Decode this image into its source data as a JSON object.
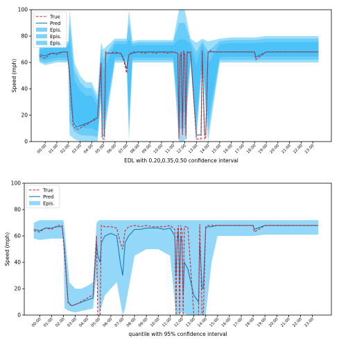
{
  "chart_data": [
    {
      "type": "line",
      "xlabel": "EDL with 0.20,0.35,0.50 confidence interval",
      "ylabel": "Speed (mph)",
      "ylim": [
        0,
        100
      ],
      "yticks": [
        0,
        20,
        40,
        60,
        80,
        100
      ],
      "xticks": [
        "00:00",
        "01:00",
        "02:00",
        "03:00",
        "04:00",
        "05:00",
        "06:00",
        "07:00",
        "08:00",
        "09:00",
        "10:00",
        "11:00",
        "12:00",
        "13:00",
        "14:00",
        "15:00",
        "16:00",
        "17:00",
        "18:00",
        "19:00",
        "20:00",
        "21:00",
        "22:00",
        "23:00"
      ],
      "legend": {
        "placement": "top-left",
        "entries": [
          "True",
          "Pred",
          "Epis.",
          "Epis.",
          "Epis."
        ]
      },
      "colors": {
        "true": "#d62728",
        "pred": "#1f77b4",
        "band": "#29b6f6"
      },
      "series": [
        {
          "name": "True",
          "x": [
            -0.5,
            0,
            0.5,
            1,
            1.5,
            1.9,
            2.1,
            2.4,
            2.7,
            3,
            3.3,
            3.6,
            3.9,
            4.2,
            4.5,
            4.8,
            4.9,
            5.1,
            5.2,
            5.5,
            6,
            6.5,
            6.8,
            7,
            7.2,
            7.5,
            8,
            8.5,
            9,
            9.5,
            10,
            10.5,
            11,
            11.4,
            11.5,
            11.6,
            11.7,
            11.8,
            11.9,
            12,
            12.1,
            12.2,
            12.5,
            13,
            13.4,
            13.5,
            13.7,
            13.8,
            14,
            14.2,
            14.5,
            15,
            16,
            17,
            18,
            18.1,
            19,
            20,
            21,
            22,
            23,
            23.5
          ],
          "values": [
            65,
            63,
            67,
            66,
            68,
            68,
            50,
            12,
            9,
            10,
            12,
            13,
            15,
            16,
            18,
            60,
            2,
            2,
            68,
            67,
            68,
            67,
            60,
            52,
            66,
            68,
            68,
            67,
            68,
            67,
            68,
            67,
            68,
            67,
            2,
            65,
            68,
            5,
            69,
            66,
            2,
            68,
            68,
            2,
            2,
            69,
            2,
            2,
            68,
            69,
            68,
            68,
            68,
            68,
            68,
            62,
            68,
            68,
            68,
            68,
            68,
            68
          ]
        },
        {
          "name": "Pred",
          "x": [
            -0.5,
            0,
            0.5,
            1,
            1.5,
            1.9,
            2.1,
            2.4,
            2.7,
            3,
            3.3,
            3.6,
            3.9,
            4.2,
            4.5,
            4.8,
            4.9,
            5.1,
            5.2,
            5.5,
            6,
            6.5,
            6.8,
            7,
            7.2,
            7.5,
            8,
            8.5,
            9,
            9.5,
            10,
            10.5,
            11,
            11.4,
            11.5,
            11.6,
            11.7,
            11.8,
            11.9,
            12,
            12.1,
            12.2,
            12.5,
            13,
            13.4,
            13.5,
            13.7,
            13.8,
            14,
            14.2,
            14.5,
            15,
            16,
            17,
            18,
            18.1,
            19,
            20,
            21,
            22,
            23,
            23.5
          ],
          "values": [
            66,
            65,
            67,
            67,
            68,
            68,
            52,
            15,
            11,
            12,
            13,
            14,
            15,
            17,
            18,
            58,
            5,
            5,
            67,
            67,
            67,
            67,
            62,
            55,
            66,
            67,
            68,
            68,
            68,
            68,
            68,
            68,
            68,
            67,
            5,
            64,
            67,
            8,
            68,
            66,
            5,
            67,
            68,
            5,
            5,
            68,
            5,
            5,
            68,
            68,
            68,
            68,
            68,
            68,
            68,
            64,
            68,
            68,
            68,
            68,
            68,
            68
          ]
        },
        {
          "name": "Epis.",
          "x": [
            -0.5,
            0,
            1,
            2,
            2.1,
            2.5,
            3,
            3.5,
            4,
            4.5,
            4.8,
            5,
            6,
            7,
            7.2,
            7.5,
            8,
            9,
            10,
            11,
            11.5,
            12,
            12.5,
            13,
            13.5,
            14,
            15,
            16,
            17,
            18,
            19,
            20,
            21,
            22,
            23,
            23.5
          ],
          "lower": [
            60,
            58,
            60,
            60,
            5,
            2,
            0,
            0,
            0,
            0,
            30,
            0,
            60,
            60,
            0,
            60,
            60,
            60,
            60,
            60,
            0,
            0,
            60,
            0,
            60,
            0,
            60,
            60,
            60,
            60,
            60,
            60,
            60,
            60,
            60,
            60
          ],
          "upper": [
            72,
            75,
            76,
            76,
            100,
            60,
            50,
            45,
            45,
            35,
            75,
            70,
            78,
            78,
            100,
            76,
            77,
            77,
            77,
            77,
            100,
            100,
            78,
            75,
            78,
            76,
            78,
            79,
            79,
            79,
            80,
            80,
            80,
            80,
            80,
            80
          ]
        }
      ]
    },
    {
      "type": "line",
      "xlabel": "quantile with 95% confidence interval",
      "ylabel": "Speed (mph)",
      "ylim": [
        0,
        100
      ],
      "yticks": [
        0,
        20,
        40,
        60,
        80,
        100
      ],
      "xticks": [
        "00:00",
        "01:00",
        "02:00",
        "03:00",
        "04:00",
        "05:00",
        "06:00",
        "07:00",
        "08:00",
        "09:00",
        "10:00",
        "11:00",
        "12:00",
        "13:00",
        "14:00",
        "15:00",
        "16:00",
        "17:00",
        "18:00",
        "19:00",
        "20:00",
        "21:00",
        "22:00",
        "23:00"
      ],
      "legend": {
        "placement": "top-left",
        "entries": [
          "True",
          "Pred",
          "Epis."
        ]
      },
      "colors": {
        "true": "#d62728",
        "pred": "#1f77b4",
        "band": "#87d3f8"
      },
      "series": [
        {
          "name": "True",
          "x": [
            -0.5,
            0,
            0.5,
            1,
            1.5,
            1.9,
            2.1,
            2.4,
            2.7,
            3,
            3.3,
            3.6,
            3.9,
            4.2,
            4.5,
            4.8,
            4.9,
            5.1,
            5.2,
            5.5,
            6,
            6.5,
            6.8,
            7,
            7.2,
            7.5,
            8,
            8.5,
            9,
            9.5,
            10,
            10.5,
            11,
            11.4,
            11.5,
            11.6,
            11.7,
            11.8,
            11.9,
            12,
            12.1,
            12.2,
            12.5,
            13,
            13.4,
            13.5,
            13.7,
            13.8,
            14,
            14.2,
            14.5,
            15,
            16,
            17,
            18,
            18.1,
            19,
            20,
            21,
            22,
            23,
            23.5
          ],
          "values": [
            64,
            63,
            66,
            65,
            68,
            68,
            45,
            9,
            7,
            8,
            9,
            11,
            12,
            14,
            15,
            60,
            0,
            0,
            68,
            67,
            67,
            66,
            55,
            50,
            64,
            67,
            68,
            67,
            68,
            67,
            67,
            67,
            68,
            65,
            0,
            63,
            68,
            0,
            68,
            64,
            0,
            67,
            67,
            0,
            0,
            69,
            0,
            0,
            67,
            68,
            68,
            68,
            68,
            68,
            68,
            63,
            68,
            68,
            68,
            68,
            68,
            68
          ]
        },
        {
          "name": "Pred",
          "x": [
            -0.5,
            0,
            0.5,
            1,
            1.5,
            1.9,
            2.1,
            2.4,
            2.7,
            3,
            3.3,
            3.6,
            3.9,
            4.2,
            4.5,
            4.8,
            4.9,
            5.1,
            5.2,
            5.5,
            6,
            6.5,
            6.8,
            7,
            7.2,
            7.5,
            8,
            8.5,
            9,
            9.5,
            10,
            10.5,
            11,
            11.4,
            11.5,
            11.6,
            11.7,
            11.8,
            11.9,
            12,
            12.1,
            12.2,
            12.5,
            13,
            13.4,
            13.5,
            13.7,
            13.8,
            14,
            14.2,
            14.5,
            15,
            16,
            17,
            18,
            18.1,
            19,
            20,
            21,
            22,
            23,
            23.5
          ],
          "values": [
            65,
            64,
            66,
            66,
            67,
            67,
            50,
            10,
            7,
            8,
            9,
            10,
            11,
            12,
            13,
            55,
            45,
            40,
            55,
            60,
            62,
            60,
            40,
            30,
            55,
            60,
            65,
            65,
            66,
            66,
            66,
            65,
            66,
            60,
            30,
            55,
            64,
            25,
            60,
            55,
            15,
            40,
            35,
            15,
            10,
            55,
            20,
            20,
            66,
            67,
            67,
            68,
            68,
            68,
            68,
            65,
            68,
            68,
            68,
            68,
            68,
            68
          ]
        },
        {
          "name": "Epis.",
          "x": [
            -0.5,
            0,
            1,
            2,
            2.1,
            2.5,
            3,
            3.5,
            4,
            4.5,
            4.8,
            5,
            5.5,
            6,
            6.5,
            7,
            7.2,
            7.5,
            8,
            9,
            10,
            11,
            11.5,
            12,
            12.5,
            13,
            13.5,
            14,
            14.5,
            15,
            16,
            17,
            18,
            19,
            20,
            21,
            22,
            23,
            23.5
          ],
          "lower": [
            58,
            57,
            58,
            58,
            5,
            3,
            2,
            3,
            4,
            5,
            30,
            0,
            15,
            20,
            25,
            0,
            5,
            20,
            45,
            50,
            50,
            45,
            0,
            2,
            0,
            0,
            0,
            0,
            40,
            60,
            60,
            60,
            60,
            61,
            61,
            61,
            61,
            61,
            61
          ],
          "upper": [
            70,
            72,
            72,
            72,
            65,
            25,
            20,
            20,
            22,
            25,
            70,
            72,
            72,
            72,
            72,
            72,
            72,
            72,
            72,
            72,
            72,
            72,
            72,
            72,
            72,
            72,
            72,
            72,
            72,
            72,
            72,
            72,
            72,
            72,
            72,
            72,
            72,
            72,
            72
          ]
        }
      ]
    }
  ]
}
